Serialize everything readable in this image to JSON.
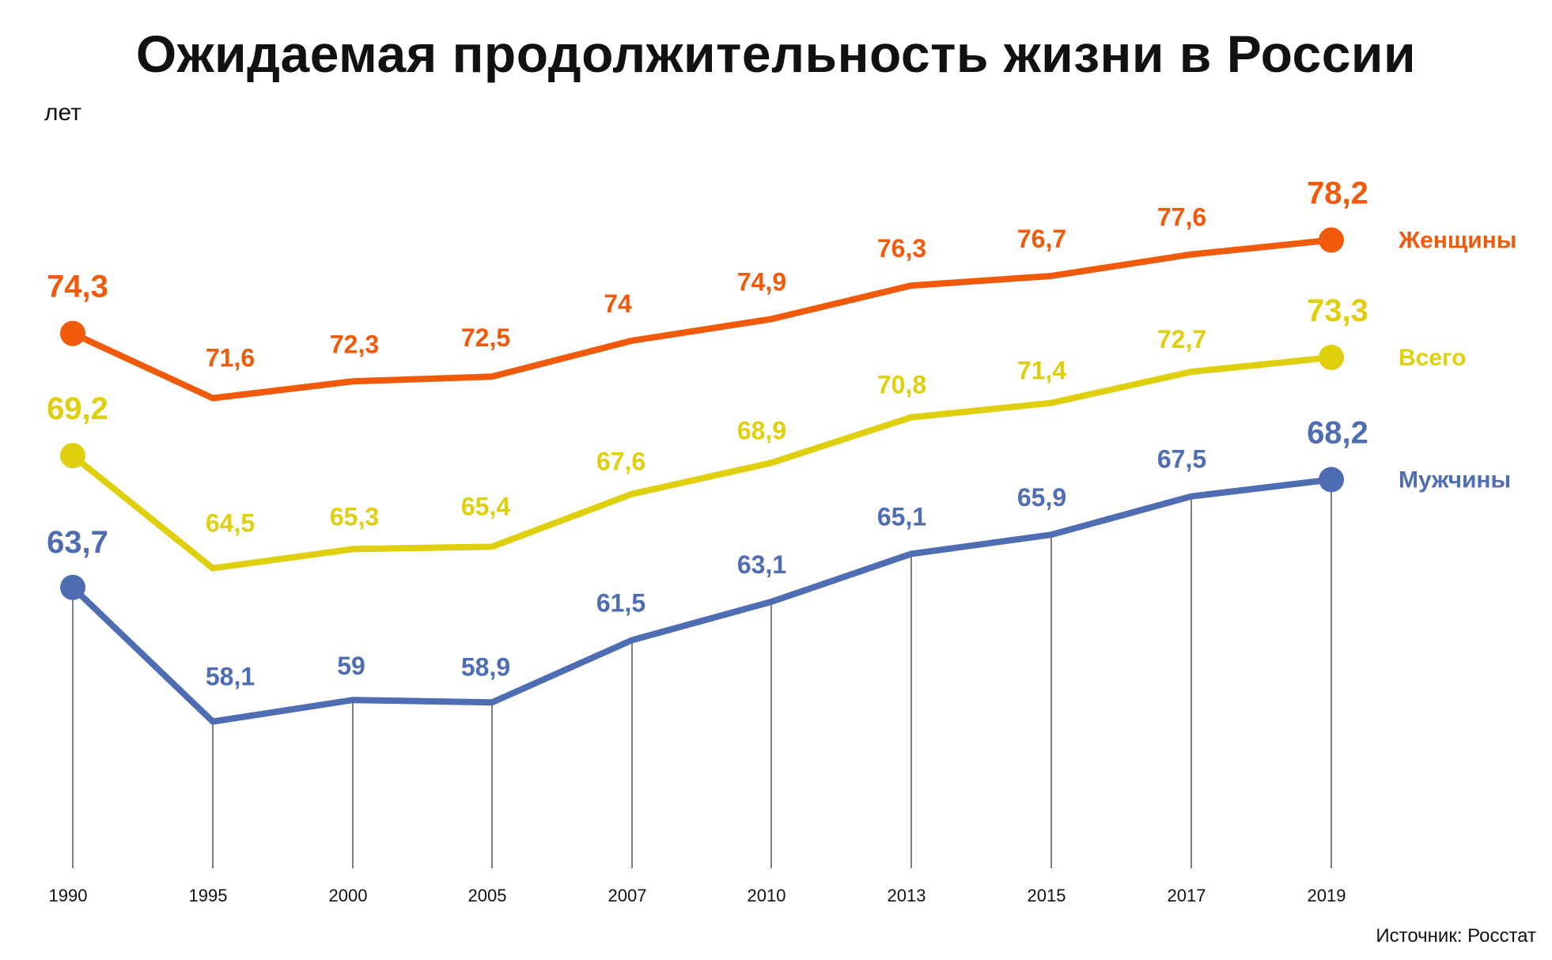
{
  "title": "Ожидаемая продолжительность жизни в России",
  "unit": "лет",
  "source": "Источник: Росстат",
  "chart_data": {
    "type": "line",
    "title": "Ожидаемая продолжительность жизни в России",
    "ylabel": "лет",
    "xlabel": "",
    "categories": [
      "1990",
      "1995",
      "2000",
      "2005",
      "2007",
      "2010",
      "2013",
      "2015",
      "2017",
      "2019"
    ],
    "ylim": [
      53,
      80
    ],
    "grid": false,
    "legend_placement": "right",
    "series": [
      {
        "name": "Женщины",
        "color": "#f05a0a",
        "values": [
          74.3,
          71.6,
          72.3,
          72.5,
          74,
          74.9,
          76.3,
          76.7,
          77.6,
          78.2
        ],
        "labels": [
          "74,3",
          "71,6",
          "72,3",
          "72,5",
          "74",
          "74,9",
          "76,3",
          "76,7",
          "77,6",
          "78,2"
        ]
      },
      {
        "name": "Всего",
        "color": "#e0cf0c",
        "values": [
          69.2,
          64.5,
          65.3,
          65.4,
          67.6,
          68.9,
          70.8,
          71.4,
          72.7,
          73.3
        ],
        "labels": [
          "69,2",
          "64,5",
          "65,3",
          "65,4",
          "67,6",
          "68,9",
          "70,8",
          "71,4",
          "72,7",
          "73,3"
        ]
      },
      {
        "name": "Мужчины",
        "color": "#4e6db3",
        "values": [
          63.7,
          58.1,
          59,
          58.9,
          61.5,
          63.1,
          65.1,
          65.9,
          67.5,
          68.2
        ],
        "labels": [
          "63,7",
          "58,1",
          "59",
          "58,9",
          "61,5",
          "63,1",
          "65,1",
          "65,9",
          "67,5",
          "68,2"
        ]
      }
    ]
  }
}
